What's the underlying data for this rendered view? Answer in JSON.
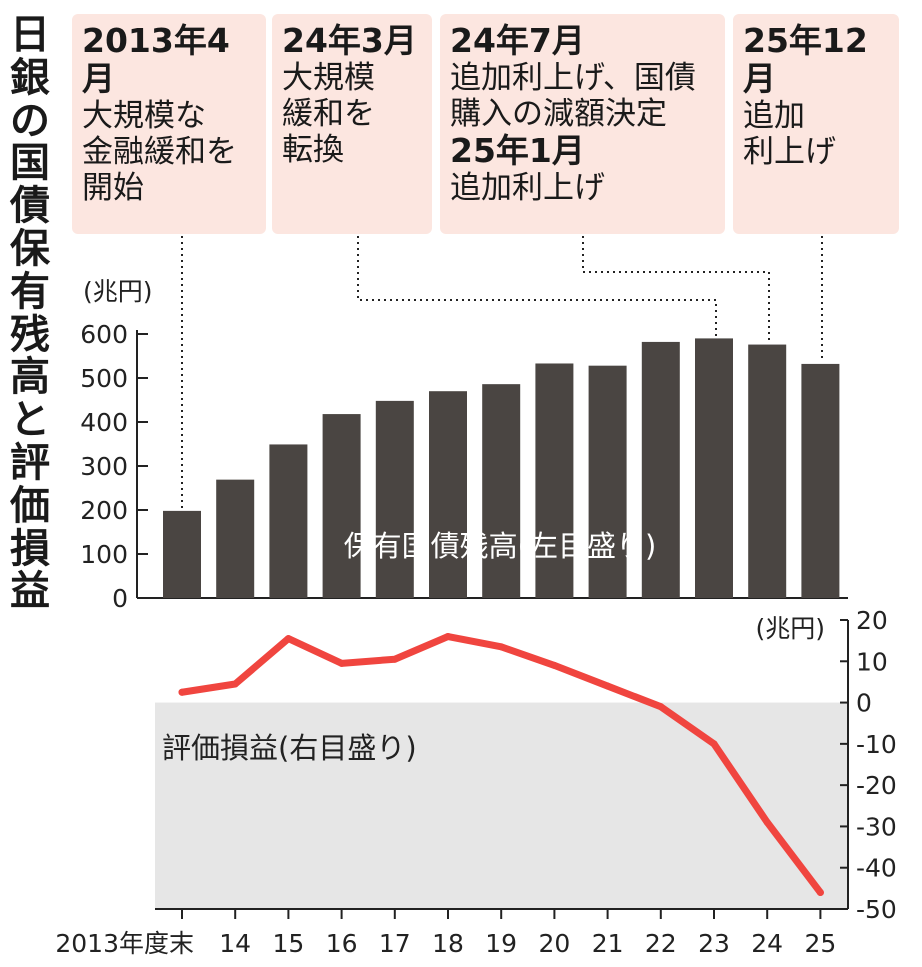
{
  "title": "日銀の国債保有残高と評価損益",
  "annotations": [
    {
      "date": "2013年4月",
      "text": "大規模な\n金融緩和を\n開始"
    },
    {
      "date": "24年3月",
      "text": "大規模\n緩和を\n転換"
    },
    {
      "date": "24年7月",
      "text": "追加利上げ、国債\n購入の減額決定",
      "date2": "25年1月",
      "text2": "追加利上げ"
    },
    {
      "date": "25年12月",
      "text": "追加\n利上げ"
    }
  ],
  "chart_data": [
    {
      "type": "bar",
      "series_name": "保有国債残高(左目盛り)",
      "unit_label": "(兆円)",
      "categories": [
        "2013年度末",
        "14",
        "15",
        "16",
        "17",
        "18",
        "19",
        "20",
        "21",
        "22",
        "23",
        "24",
        "25"
      ],
      "values": [
        198,
        269,
        349,
        418,
        448,
        470,
        486,
        533,
        528,
        582,
        590,
        576,
        532
      ],
      "ylim": [
        0,
        600
      ],
      "yticks": [
        0,
        100,
        200,
        300,
        400,
        500,
        600
      ],
      "color": "#4a4542"
    },
    {
      "type": "line",
      "series_name": "評価損益(右目盛り)",
      "unit_label": "(兆円)",
      "categories": [
        "2013年度末",
        "14",
        "15",
        "16",
        "17",
        "18",
        "19",
        "20",
        "21",
        "22",
        "23",
        "24",
        "25"
      ],
      "values": [
        2.5,
        4.5,
        15.5,
        9.5,
        10.5,
        16,
        13.5,
        9,
        4,
        -1,
        -10,
        -29,
        -46
      ],
      "ylim": [
        -50,
        20
      ],
      "yticks": [
        20,
        10,
        0,
        -10,
        -20,
        -30,
        -40,
        -50
      ],
      "color": "#f0453f",
      "negative_background": "#e6e6e6"
    }
  ]
}
